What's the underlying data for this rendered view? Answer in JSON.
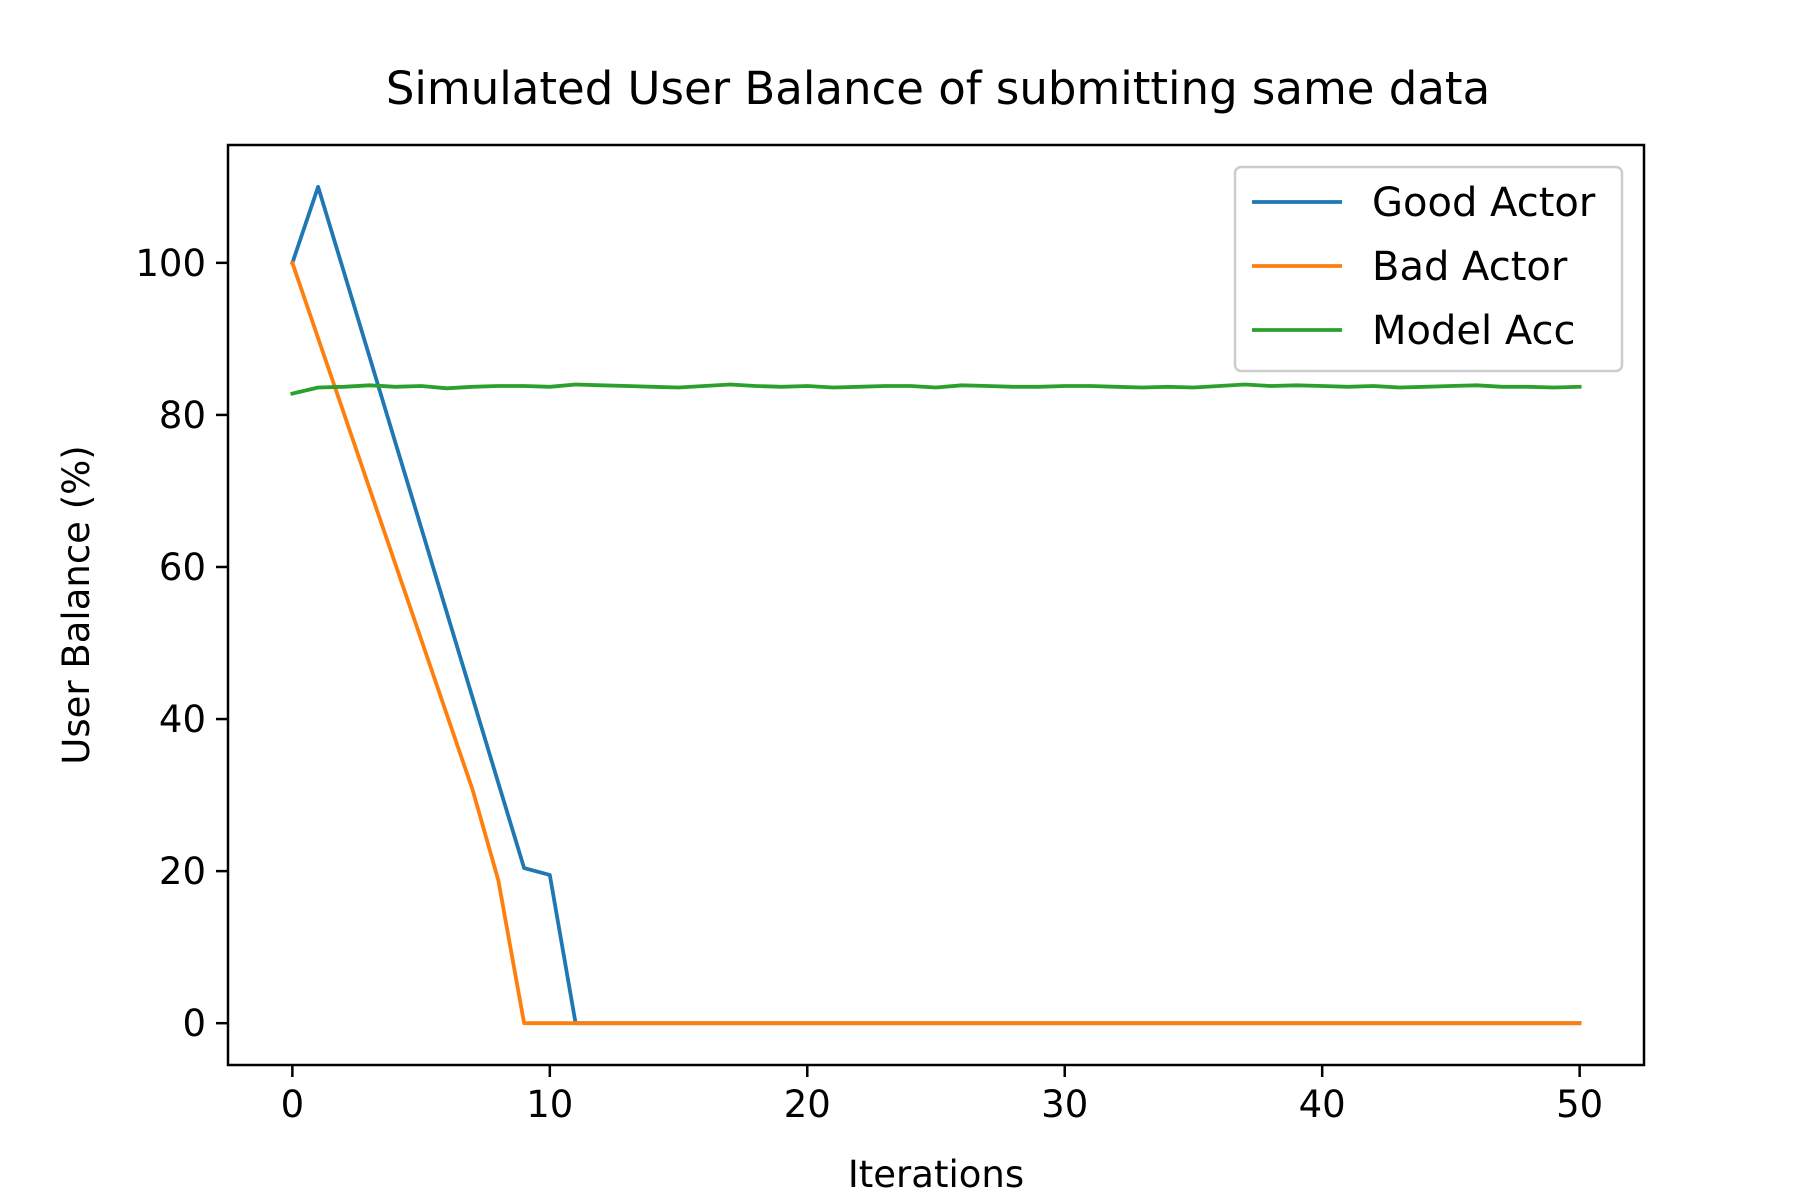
{
  "chart_data": {
    "type": "line",
    "title": "Simulated User Balance of submitting same data",
    "xlabel": "Iterations",
    "ylabel": "User Balance (%)",
    "xlim": [
      -2.5,
      52.5
    ],
    "ylim": [
      -5.5,
      115.5
    ],
    "xticks": [
      0,
      10,
      20,
      30,
      40,
      50
    ],
    "yticks": [
      0,
      20,
      40,
      60,
      80,
      100
    ],
    "xtick_labels": [
      "0",
      "10",
      "20",
      "30",
      "40",
      "50"
    ],
    "ytick_labels": [
      "0",
      "20",
      "40",
      "60",
      "80",
      "100"
    ],
    "grid": false,
    "legend_position": "top-right",
    "x": [
      0,
      1,
      2,
      3,
      4,
      5,
      6,
      7,
      8,
      9,
      10,
      11,
      12,
      13,
      14,
      15,
      16,
      17,
      18,
      19,
      20,
      21,
      22,
      23,
      24,
      25,
      26,
      27,
      28,
      29,
      30,
      31,
      32,
      33,
      34,
      35,
      36,
      37,
      38,
      39,
      40,
      41,
      42,
      43,
      44,
      45,
      46,
      47,
      48,
      49,
      50
    ],
    "series": [
      {
        "name": "Good Actor",
        "color": "#1f77b4",
        "values": [
          100,
          110,
          98.8,
          87.6,
          76.4,
          65.2,
          54,
          42.8,
          31.6,
          20.4,
          19.5,
          0,
          0,
          0,
          0,
          0,
          0,
          0,
          0,
          0,
          0,
          0,
          0,
          0,
          0,
          0,
          0,
          0,
          0,
          0,
          0,
          0,
          0,
          0,
          0,
          0,
          0,
          0,
          0,
          0,
          0,
          0,
          0,
          0,
          0,
          0,
          0,
          0,
          0,
          0,
          0
        ]
      },
      {
        "name": "Bad Actor",
        "color": "#ff7f0e",
        "values": [
          100,
          90.1,
          80.2,
          70.3,
          60.4,
          50.5,
          40.6,
          30.7,
          18.8,
          0,
          0,
          0,
          0,
          0,
          0,
          0,
          0,
          0,
          0,
          0,
          0,
          0,
          0,
          0,
          0,
          0,
          0,
          0,
          0,
          0,
          0,
          0,
          0,
          0,
          0,
          0,
          0,
          0,
          0,
          0,
          0,
          0,
          0,
          0,
          0,
          0,
          0,
          0,
          0,
          0,
          0
        ]
      },
      {
        "name": "Model Acc",
        "color": "#2ca02c",
        "values": [
          82.8,
          83.6,
          83.7,
          83.9,
          83.7,
          83.8,
          83.5,
          83.7,
          83.8,
          83.8,
          83.7,
          84.0,
          83.9,
          83.8,
          83.7,
          83.6,
          83.8,
          84.0,
          83.8,
          83.7,
          83.8,
          83.6,
          83.7,
          83.8,
          83.8,
          83.6,
          83.9,
          83.8,
          83.7,
          83.7,
          83.8,
          83.8,
          83.7,
          83.6,
          83.7,
          83.6,
          83.8,
          84.0,
          83.8,
          83.9,
          83.8,
          83.7,
          83.8,
          83.6,
          83.7,
          83.8,
          83.9,
          83.7,
          83.7,
          83.6,
          83.7
        ]
      }
    ]
  }
}
